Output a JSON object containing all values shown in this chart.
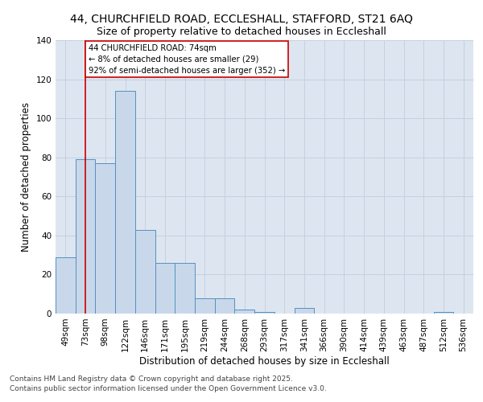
{
  "title_line1": "44, CHURCHFIELD ROAD, ECCLESHALL, STAFFORD, ST21 6AQ",
  "title_line2": "Size of property relative to detached houses in Eccleshall",
  "xlabel": "Distribution of detached houses by size in Eccleshall",
  "ylabel": "Number of detached properties",
  "categories": [
    "49sqm",
    "73sqm",
    "98sqm",
    "122sqm",
    "146sqm",
    "171sqm",
    "195sqm",
    "219sqm",
    "244sqm",
    "268sqm",
    "293sqm",
    "317sqm",
    "341sqm",
    "366sqm",
    "390sqm",
    "414sqm",
    "439sqm",
    "463sqm",
    "487sqm",
    "512sqm",
    "536sqm"
  ],
  "values": [
    29,
    79,
    77,
    114,
    43,
    26,
    26,
    8,
    8,
    2,
    1,
    0,
    3,
    0,
    0,
    0,
    0,
    0,
    0,
    1,
    0
  ],
  "bar_color": "#c8d8ea",
  "bar_edge_color": "#5590c0",
  "grid_color": "#c5d0e0",
  "background_color": "#dde6f0",
  "annotation_box_text": "44 CHURCHFIELD ROAD: 74sqm\n← 8% of detached houses are smaller (29)\n92% of semi-detached houses are larger (352) →",
  "annotation_box_color": "#ffffff",
  "annotation_box_border": "#cc0000",
  "redline_index": 1,
  "ylim": [
    0,
    140
  ],
  "yticks": [
    0,
    20,
    40,
    60,
    80,
    100,
    120,
    140
  ],
  "footer_text": "Contains HM Land Registry data © Crown copyright and database right 2025.\nContains public sector information licensed under the Open Government Licence v3.0.",
  "title_fontsize": 10,
  "subtitle_fontsize": 9,
  "axis_label_fontsize": 8.5,
  "tick_fontsize": 7.5,
  "footer_fontsize": 6.5
}
